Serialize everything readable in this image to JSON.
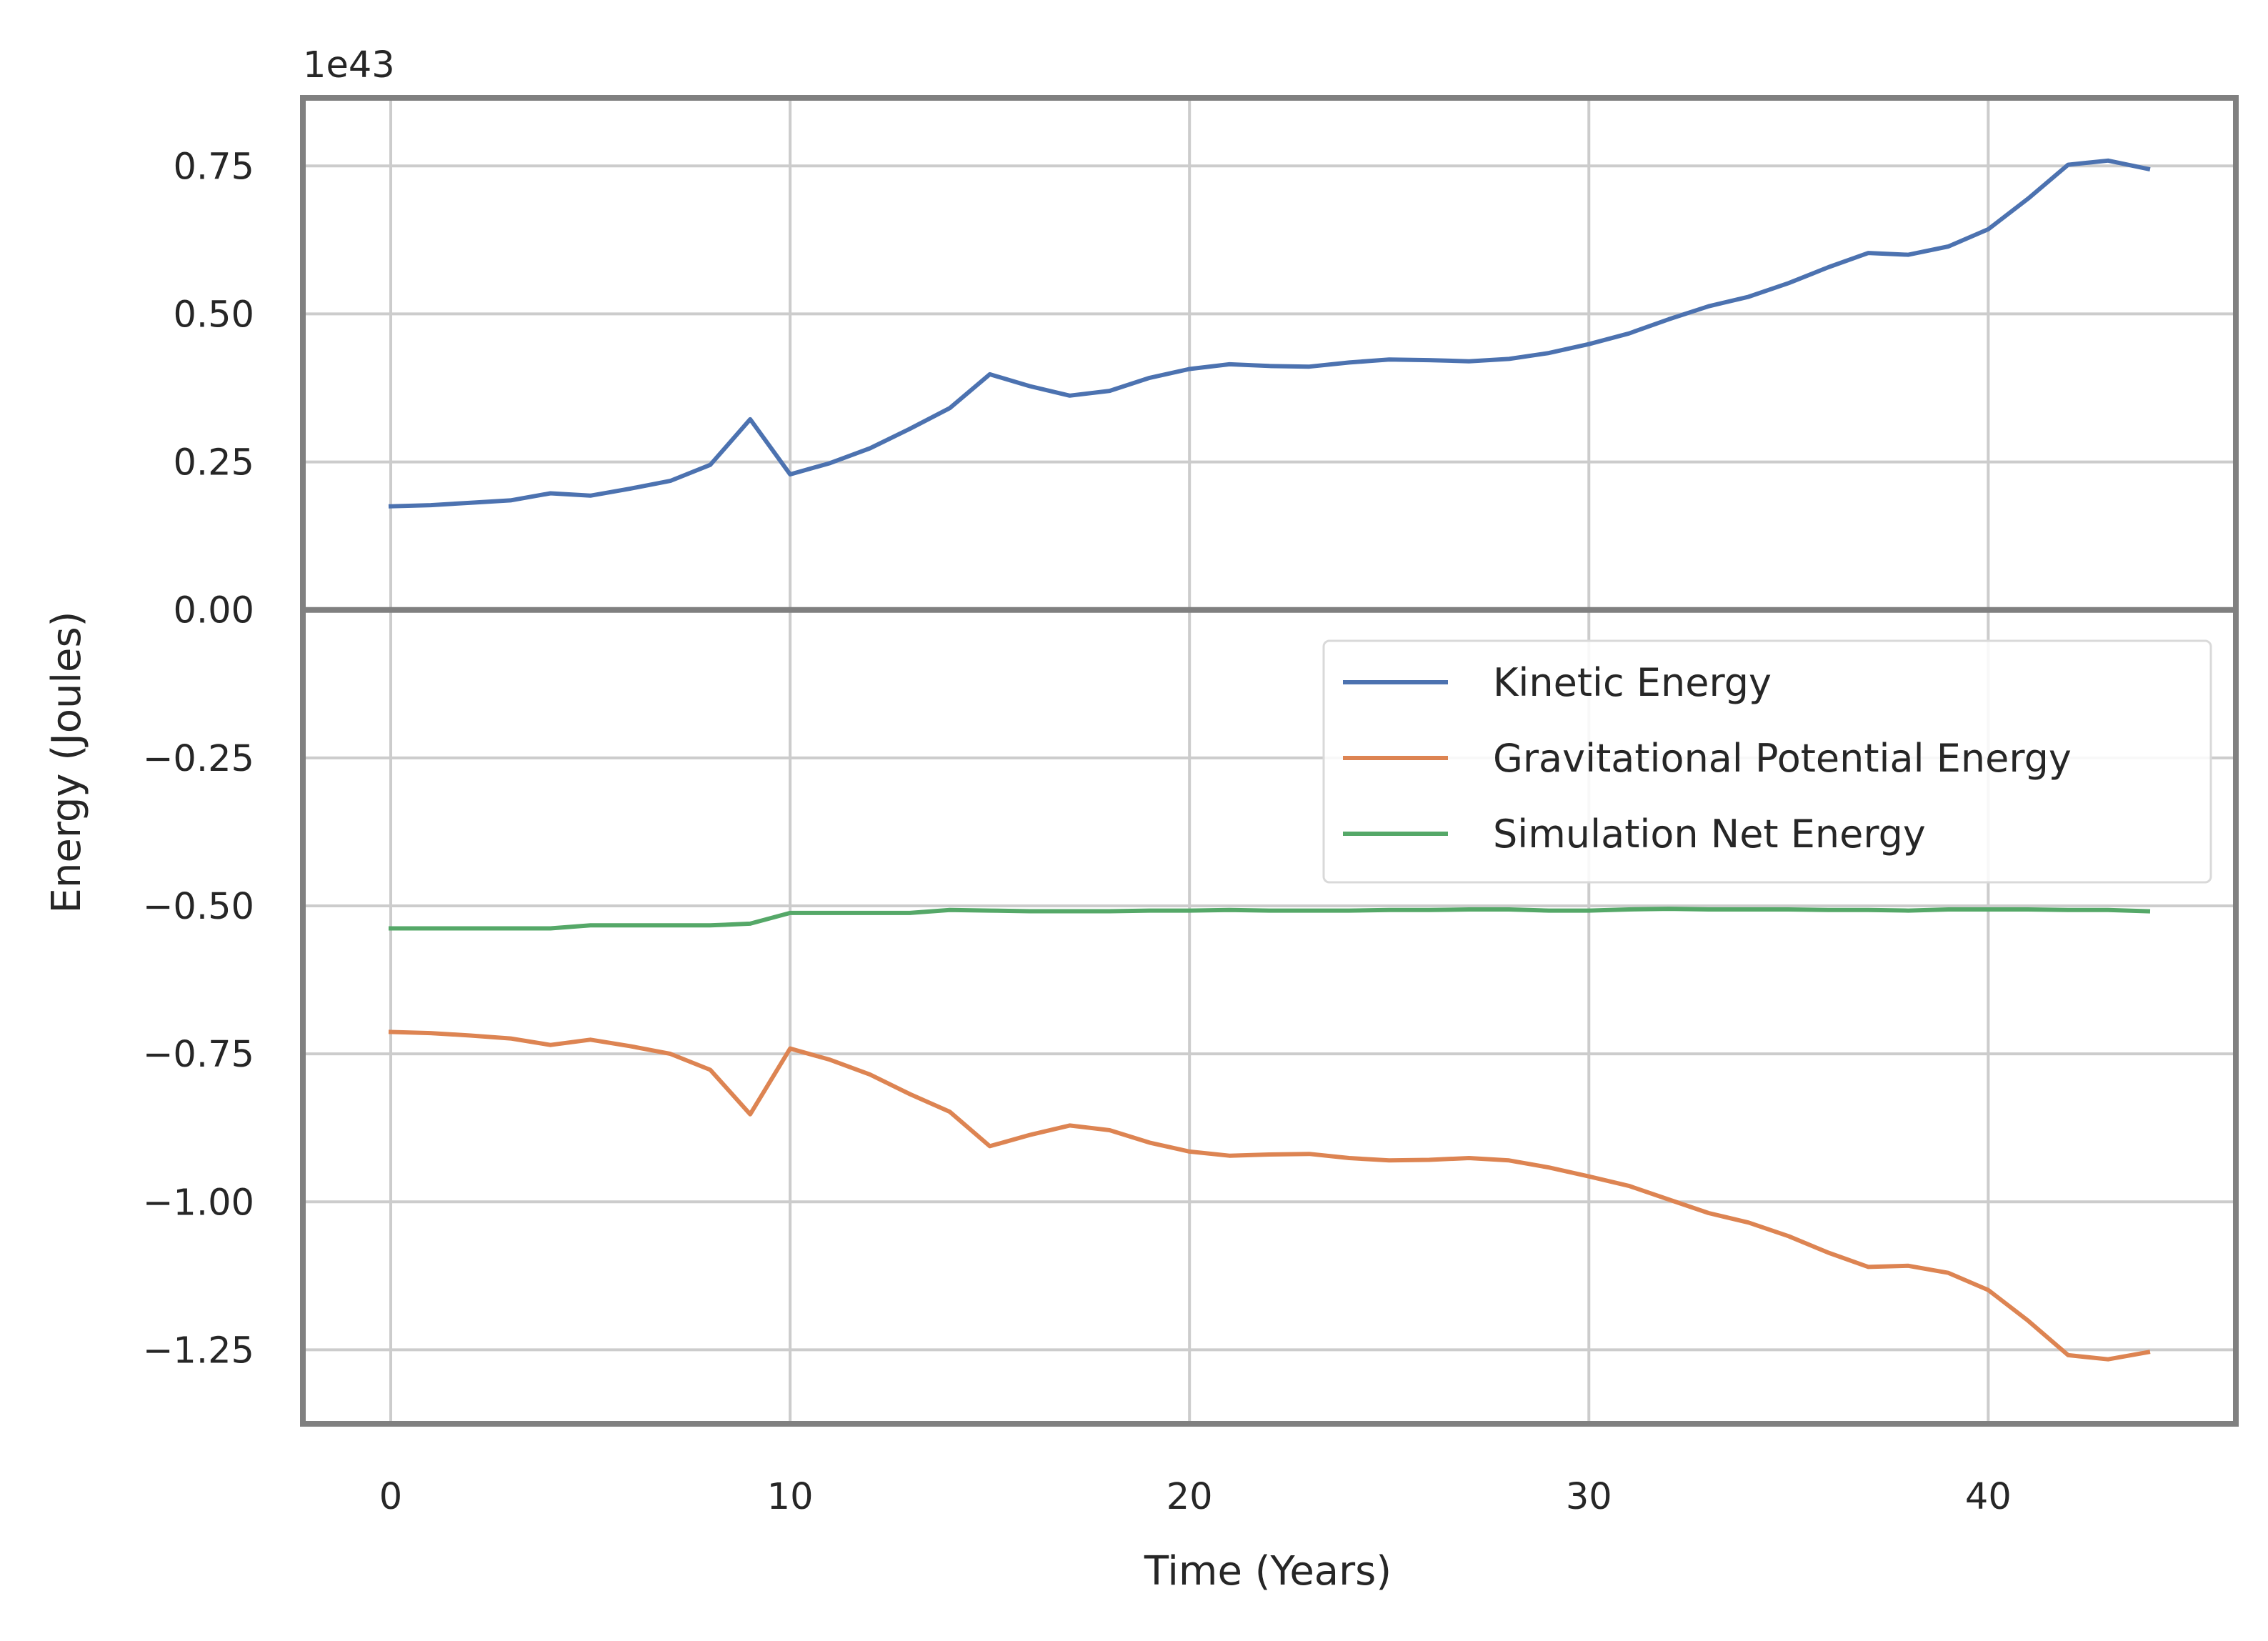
{
  "chart_data": {
    "type": "line",
    "title": "",
    "xlabel": "Time (Years)",
    "ylabel": "Energy (Joules)",
    "y_offset_label": "1e43",
    "xlim": [
      -2.2,
      46.2
    ],
    "ylim": [
      -1.375,
      0.865
    ],
    "x_ticks": [
      0,
      10,
      20,
      30,
      40
    ],
    "x_tick_labels": [
      "0",
      "10",
      "20",
      "30",
      "40"
    ],
    "y_ticks": [
      0.75,
      0.5,
      0.25,
      0.0,
      -0.25,
      -0.5,
      -0.75,
      -1.0,
      -1.25
    ],
    "y_tick_labels": [
      "0.75",
      "0.50",
      "0.25",
      "0.00",
      "−0.25",
      "−0.50",
      "−0.75",
      "−1.00",
      "−1.25"
    ],
    "grid": true,
    "legend_position": "upper-right",
    "x": [
      0,
      1,
      2,
      3,
      4,
      5,
      6,
      7,
      8,
      9,
      10,
      11,
      12,
      13,
      14,
      15,
      16,
      17,
      18,
      19,
      20,
      21,
      22,
      23,
      24,
      25,
      26,
      27,
      28,
      29,
      30,
      31,
      32,
      33,
      34,
      35,
      36,
      37,
      38,
      39,
      40,
      41,
      42,
      43,
      44
    ],
    "series": [
      {
        "name": "Kinetic Energy",
        "color": "#4c72b0",
        "values": [
          0.175,
          0.177,
          0.181,
          0.185,
          0.197,
          0.193,
          0.205,
          0.218,
          0.245,
          0.322,
          0.229,
          0.248,
          0.273,
          0.306,
          0.341,
          0.398,
          0.378,
          0.362,
          0.37,
          0.392,
          0.407,
          0.415,
          0.412,
          0.411,
          0.418,
          0.423,
          0.422,
          0.42,
          0.424,
          0.434,
          0.449,
          0.467,
          0.491,
          0.513,
          0.529,
          0.552,
          0.579,
          0.603,
          0.6,
          0.614,
          0.643,
          0.695,
          0.752,
          0.759,
          0.745
        ]
      },
      {
        "name": "Gravitational Potential Energy",
        "color": "#dd8452",
        "values": [
          -0.713,
          -0.715,
          -0.719,
          -0.724,
          -0.735,
          -0.726,
          -0.737,
          -0.75,
          -0.777,
          -0.852,
          -0.741,
          -0.76,
          -0.785,
          -0.818,
          -0.848,
          -0.906,
          -0.887,
          -0.871,
          -0.879,
          -0.9,
          -0.915,
          -0.922,
          -0.92,
          -0.919,
          -0.926,
          -0.93,
          -0.929,
          -0.926,
          -0.93,
          -0.942,
          -0.957,
          -0.973,
          -0.996,
          -1.019,
          -1.035,
          -1.058,
          -1.086,
          -1.11,
          -1.108,
          -1.12,
          -1.149,
          -1.201,
          -1.259,
          -1.266,
          -1.254
        ]
      },
      {
        "name": "Simulation Net Energy",
        "color": "#55a868",
        "values": [
          -0.538,
          -0.538,
          -0.538,
          -0.538,
          -0.538,
          -0.533,
          -0.533,
          -0.533,
          -0.533,
          -0.53,
          -0.512,
          -0.512,
          -0.512,
          -0.512,
          -0.507,
          -0.508,
          -0.509,
          -0.509,
          -0.509,
          -0.508,
          -0.508,
          -0.507,
          -0.508,
          -0.508,
          -0.508,
          -0.507,
          -0.507,
          -0.506,
          -0.506,
          -0.508,
          -0.508,
          -0.506,
          -0.505,
          -0.506,
          -0.506,
          -0.506,
          -0.507,
          -0.507,
          -0.508,
          -0.506,
          -0.506,
          -0.506,
          -0.507,
          -0.507,
          -0.509
        ]
      }
    ]
  }
}
